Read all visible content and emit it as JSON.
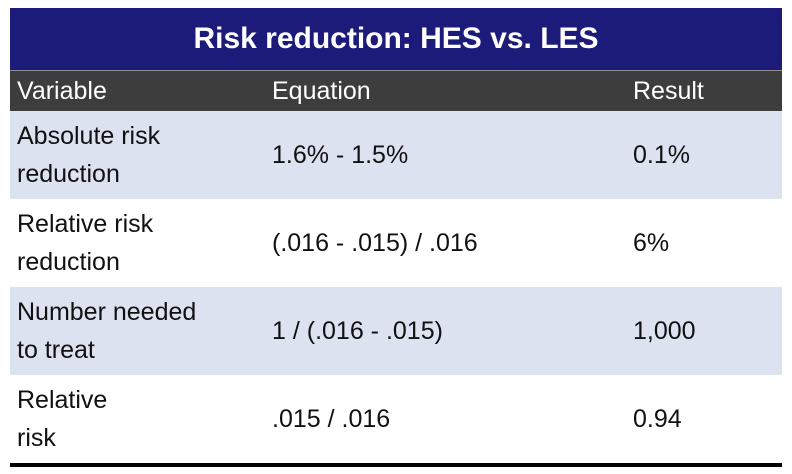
{
  "table": {
    "title": "Risk reduction: HES vs. LES",
    "headers": {
      "variable": "Variable",
      "equation": "Equation",
      "result": "Result"
    },
    "rows": [
      {
        "variable": "Absolute risk reduction",
        "variable_line1": "Absolute risk",
        "variable_line2": "reduction",
        "equation": "1.6% - 1.5%",
        "result": "0.1%"
      },
      {
        "variable": "Relative risk reduction",
        "variable_line1": "Relative risk",
        "variable_line2": "reduction",
        "equation": "(.016 - .015) / .016",
        "result": "6%"
      },
      {
        "variable": "Number needed to treat",
        "variable_line1": "Number needed",
        "variable_line2": "to treat",
        "equation": "1 / (.016 - .015)",
        "result": "1,000"
      },
      {
        "variable": "Relative risk",
        "variable_line1": "Relative",
        "variable_line2": "risk",
        "equation": ".015 / .016",
        "result": "0.94"
      }
    ],
    "colors": {
      "title_bg": "#1c1b7a",
      "header_bg": "#3d3d3d",
      "shaded_row_bg": "#dde2f0"
    }
  }
}
